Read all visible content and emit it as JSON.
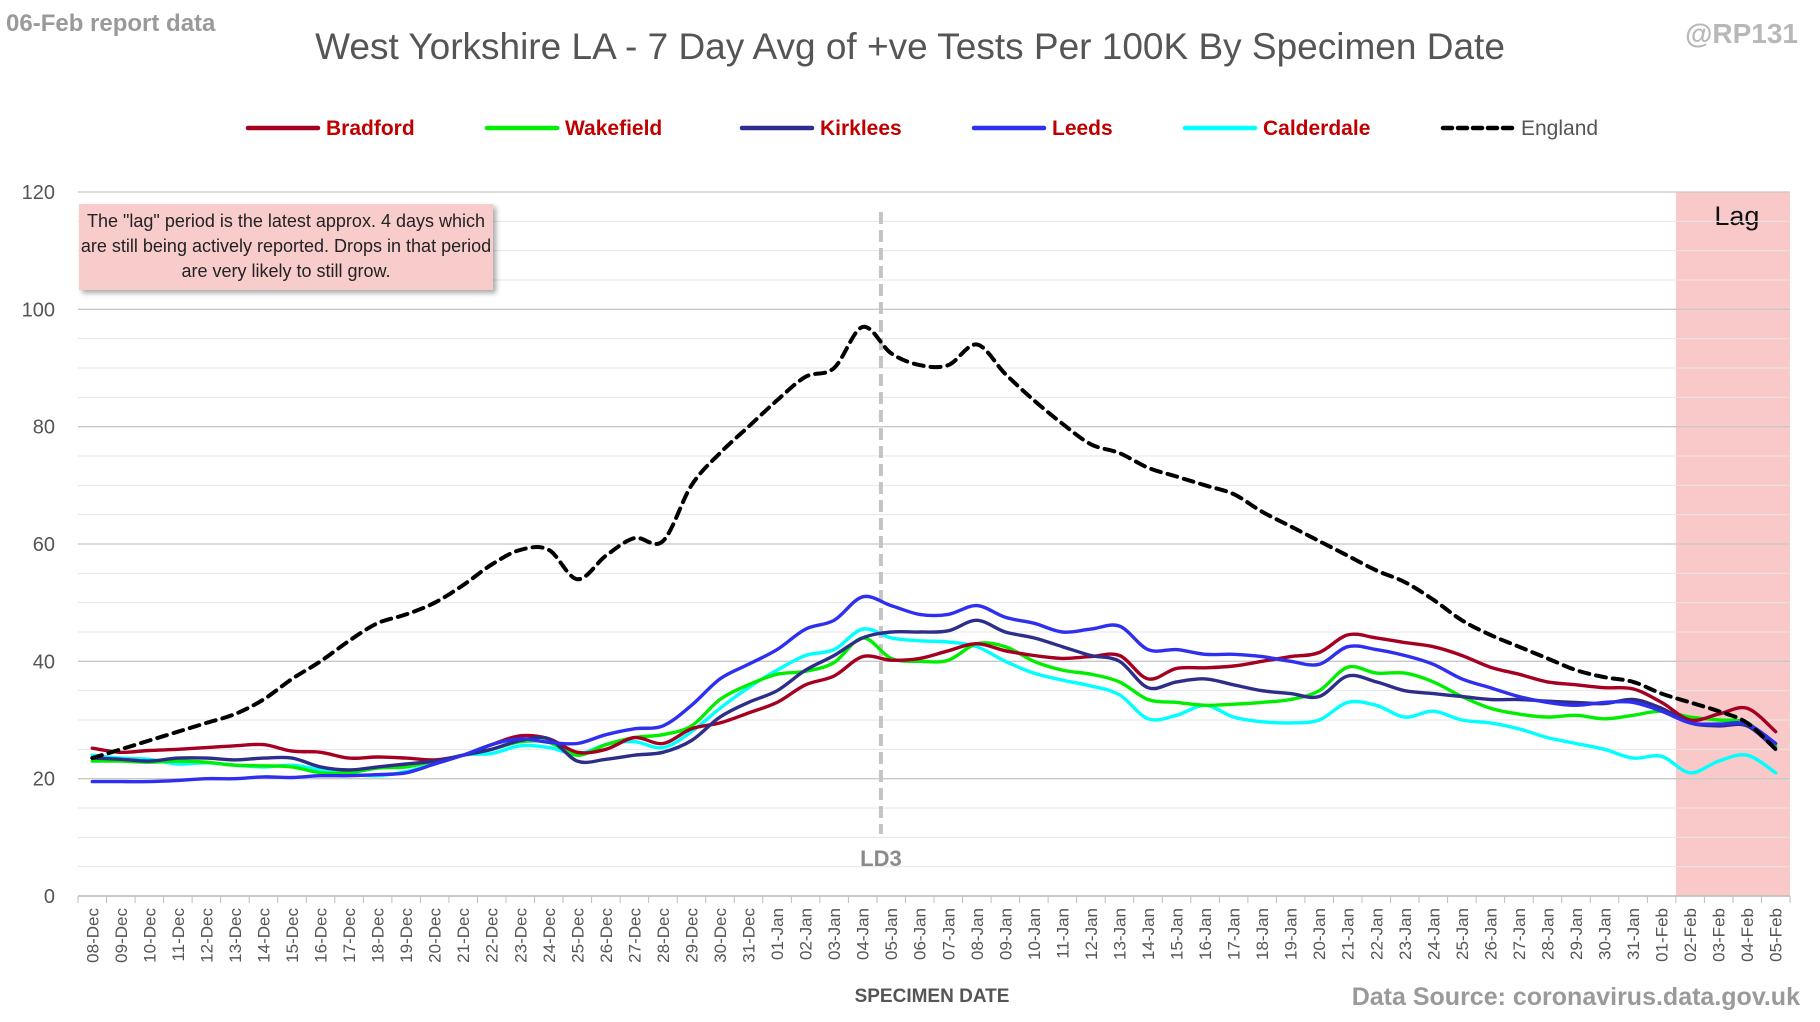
{
  "report_label": "06-Feb report data",
  "handle": "@RP131",
  "source": "Data Source: coronavirus.data.gov.uk",
  "lag_note": "The \"lag\" period is the latest approx. 4 days which are still being actively reported. Drops in that period are very likely to still grow.",
  "chart_data": {
    "type": "line",
    "title": "West Yorkshire LA - 7 Day Avg of +ve Tests Per 100K By Specimen Date",
    "xlabel": "SPECIMEN DATE",
    "ylabel": "",
    "ylim": [
      0,
      120
    ],
    "yticks": [
      0,
      20,
      40,
      60,
      80,
      100,
      120
    ],
    "grid": true,
    "legend_position": "top",
    "x": [
      "08-Dec",
      "09-Dec",
      "10-Dec",
      "11-Dec",
      "12-Dec",
      "13-Dec",
      "14-Dec",
      "15-Dec",
      "16-Dec",
      "17-Dec",
      "18-Dec",
      "19-Dec",
      "20-Dec",
      "21-Dec",
      "22-Dec",
      "23-Dec",
      "24-Dec",
      "25-Dec",
      "26-Dec",
      "27-Dec",
      "28-Dec",
      "29-Dec",
      "30-Dec",
      "31-Dec",
      "01-Jan",
      "02-Jan",
      "03-Jan",
      "04-Jan",
      "05-Jan",
      "06-Jan",
      "07-Jan",
      "08-Jan",
      "09-Jan",
      "10-Jan",
      "11-Jan",
      "12-Jan",
      "13-Jan",
      "14-Jan",
      "15-Jan",
      "16-Jan",
      "17-Jan",
      "18-Jan",
      "19-Jan",
      "20-Jan",
      "21-Jan",
      "22-Jan",
      "23-Jan",
      "24-Jan",
      "25-Jan",
      "26-Jan",
      "27-Jan",
      "28-Jan",
      "29-Jan",
      "30-Jan",
      "31-Jan",
      "01-Feb",
      "02-Feb",
      "03-Feb",
      "04-Feb",
      "05-Feb"
    ],
    "series": [
      {
        "name": "Bradford",
        "color": "#a50021",
        "dashed": false,
        "values": [
          25.2,
          24.5,
          24.8,
          25.0,
          25.3,
          25.6,
          25.8,
          24.7,
          24.5,
          23.5,
          23.7,
          23.5,
          23.2,
          24.0,
          25.8,
          27.3,
          26.8,
          24.5,
          25.0,
          27.0,
          26.0,
          28.5,
          29.5,
          31.2,
          33.0,
          36.0,
          37.5,
          40.8,
          40.2,
          40.5,
          41.8,
          43.0,
          41.8,
          41.0,
          40.5,
          40.8,
          41.0,
          37.0,
          38.8,
          38.9,
          39.2,
          40.0,
          40.8,
          41.5,
          44.5,
          44.0,
          43.2,
          42.5,
          41.0,
          39.0,
          37.8,
          36.5,
          36.0,
          35.5,
          35.3,
          33.0,
          30.0,
          31.0,
          32.0,
          28.0
        ]
      },
      {
        "name": "Wakefield",
        "color": "#00ee00",
        "dashed": false,
        "values": [
          23.0,
          23.0,
          22.8,
          23.0,
          22.8,
          22.3,
          22.2,
          22.0,
          21.0,
          21.0,
          21.8,
          22.0,
          23.0,
          24.0,
          25.0,
          26.3,
          26.2,
          24.0,
          25.8,
          27.0,
          27.5,
          29.0,
          33.5,
          36.0,
          37.8,
          38.3,
          39.8,
          44.0,
          40.5,
          40.0,
          40.2,
          43.0,
          42.5,
          40.0,
          38.5,
          37.8,
          36.5,
          33.5,
          33.0,
          32.5,
          32.7,
          33.0,
          33.5,
          35.0,
          39.0,
          38.0,
          38.0,
          36.5,
          34.0,
          32.0,
          31.0,
          30.5,
          30.8,
          30.2,
          30.8,
          31.5,
          30.5,
          30.0,
          29.5,
          25.5
        ]
      },
      {
        "name": "Kirklees",
        "color": "#2e2e8a",
        "dashed": false,
        "values": [
          23.5,
          23.3,
          23.0,
          23.5,
          23.5,
          23.2,
          23.5,
          23.5,
          22.0,
          21.5,
          22.0,
          22.5,
          23.0,
          24.0,
          25.0,
          26.5,
          26.8,
          23.0,
          23.3,
          24.0,
          24.5,
          26.5,
          30.5,
          33.0,
          35.0,
          38.5,
          41.0,
          44.0,
          45.0,
          45.0,
          45.2,
          47.0,
          45.0,
          44.0,
          42.5,
          41.0,
          40.0,
          35.5,
          36.5,
          37.0,
          36.0,
          35.0,
          34.5,
          34.0,
          37.5,
          36.5,
          35.0,
          34.5,
          34.0,
          33.5,
          33.5,
          33.2,
          33.0,
          32.8,
          33.5,
          32.0,
          29.5,
          29.0,
          29.0,
          25.0
        ]
      },
      {
        "name": "Leeds",
        "color": "#2f2fef",
        "dashed": false,
        "values": [
          19.5,
          19.5,
          19.5,
          19.7,
          20.0,
          20.0,
          20.3,
          20.2,
          20.5,
          20.5,
          20.7,
          21.0,
          22.5,
          24.0,
          25.8,
          26.8,
          26.2,
          26.0,
          27.5,
          28.5,
          29.0,
          32.5,
          37.0,
          39.5,
          42.0,
          45.5,
          47.0,
          51.0,
          49.5,
          48.0,
          48.0,
          49.5,
          47.5,
          46.5,
          45.0,
          45.5,
          46.0,
          42.0,
          42.0,
          41.2,
          41.2,
          40.8,
          40.0,
          39.5,
          42.5,
          42.0,
          41.0,
          39.5,
          37.0,
          35.5,
          34.0,
          33.0,
          32.5,
          33.0,
          33.0,
          31.5,
          29.5,
          29.3,
          29.3,
          26.0
        ]
      },
      {
        "name": "Calderdale",
        "color": "#00ffff",
        "dashed": false,
        "values": [
          24.0,
          23.5,
          23.3,
          22.5,
          22.7,
          22.3,
          22.0,
          22.3,
          21.5,
          20.8,
          20.5,
          21.2,
          22.5,
          24.0,
          24.3,
          25.6,
          25.3,
          24.2,
          25.8,
          26.3,
          25.3,
          28.0,
          32.0,
          35.5,
          38.5,
          41.0,
          42.0,
          45.5,
          44.0,
          43.5,
          43.3,
          42.5,
          40.0,
          38.0,
          36.8,
          35.8,
          34.3,
          30.2,
          30.8,
          32.5,
          30.5,
          29.7,
          29.5,
          30.0,
          33.0,
          32.5,
          30.5,
          31.5,
          30.0,
          29.5,
          28.5,
          27.0,
          26.0,
          25.0,
          23.5,
          23.8,
          21.0,
          23.0,
          24.0,
          21.0
        ]
      },
      {
        "name": "England",
        "color": "#000000",
        "dashed": true,
        "values": [
          23.5,
          25.0,
          26.5,
          28.0,
          29.5,
          31.0,
          33.5,
          37.0,
          40.0,
          43.5,
          46.5,
          48.0,
          50.0,
          53.0,
          56.5,
          59.0,
          59.0,
          54.0,
          58.0,
          61.0,
          60.5,
          70.0,
          75.5,
          80.0,
          84.5,
          88.5,
          90.0,
          97.0,
          92.5,
          90.5,
          90.5,
          94.0,
          89.0,
          84.5,
          80.5,
          77.0,
          75.5,
          73.0,
          71.5,
          70.0,
          68.5,
          65.5,
          63.0,
          60.5,
          58.0,
          55.5,
          53.5,
          50.5,
          47.0,
          44.5,
          42.5,
          40.5,
          38.5,
          37.3,
          36.5,
          34.5,
          33.0,
          31.5,
          29.5,
          25.0
        ]
      }
    ],
    "annotations": {
      "vline_label": "LD3",
      "vline_at": "05-Jan",
      "lag_label": "Lag",
      "lag_start": "02-Feb",
      "lag_end": "05-Feb",
      "lag_color": "#f9c9c9"
    }
  }
}
